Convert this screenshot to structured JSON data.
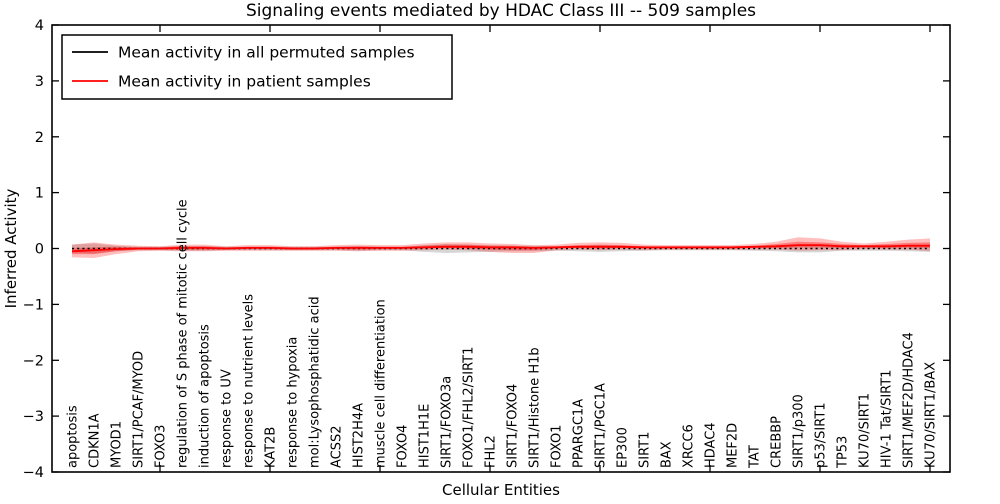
{
  "chart_data": {
    "type": "line",
    "title": "Signaling events mediated by HDAC Class III -- 509 samples",
    "xlabel": "Cellular Entities",
    "ylabel": "Inferred Activity",
    "ylim": [
      -4,
      4
    ],
    "yticks": [
      4,
      3,
      2,
      1,
      0,
      -1,
      -2,
      -3,
      -4
    ],
    "ytick_labels": [
      "4",
      "3",
      "2",
      "1",
      "0",
      "−1",
      "−2",
      "−3",
      "−4"
    ],
    "xtick_every": 5,
    "grid": false,
    "legend_position": "upper left",
    "categories": [
      "apoptosis",
      "CDKN1A",
      "MYOD1",
      "SIRT1/PCAF/MYOD",
      "FOXO3",
      "regulation of S phase of mitotic cell cycle",
      "induction of apoptosis",
      "response to UV",
      "response to nutrient levels",
      "KAT2B",
      "response to hypoxia",
      "mol:Lysophosphatidic acid",
      "ACSS2",
      "HIST2H4A",
      "muscle cell differentiation",
      "FOXO4",
      "HIST1H1E",
      "SIRT1/FOXO3a",
      "FOXO1/FHL2/SIRT1",
      "FHL2",
      "SIRT1/FOXO4",
      "SIRT1/Histone H1b",
      "FOXO1",
      "PPARGC1A",
      "SIRT1/PGC1A",
      "EP300",
      "SIRT1",
      "BAX",
      "XRCC6",
      "HDAC4",
      "MEF2D",
      "TAT",
      "CREBBP",
      "SIRT1/p300",
      "p53/SIRT1",
      "TP53",
      "KU70/SIRT1",
      "HIV-1 Tat/SIRT1",
      "SIRT1/MEF2D/HDAC4",
      "KU70/SIRT1/BAX"
    ],
    "series": [
      {
        "name": "Mean activity in all permuted samples",
        "color": "#000000",
        "line_style": "dotted",
        "values": [
          0,
          0,
          0,
          0,
          0,
          0,
          0,
          0,
          0,
          0,
          0,
          0,
          0,
          0,
          0,
          0,
          0,
          0,
          0,
          0,
          0,
          0,
          0,
          0,
          0,
          0,
          0,
          0,
          0,
          0,
          0,
          0,
          0,
          0,
          0,
          0,
          0,
          0,
          0,
          0
        ]
      },
      {
        "name": "Mean activity in patient samples",
        "color": "#ff0000",
        "line_style": "solid",
        "values": [
          -0.05,
          -0.03,
          -0.01,
          0,
          0,
          0.01,
          0.01,
          0,
          0.01,
          0.01,
          0,
          0,
          0.01,
          0.01,
          0.01,
          0.01,
          0.02,
          0.03,
          0.03,
          0.02,
          0.02,
          0.01,
          0.02,
          0.03,
          0.03,
          0.03,
          0.02,
          0.02,
          0.02,
          0.02,
          0.02,
          0.03,
          0.04,
          0.06,
          0.06,
          0.04,
          0.04,
          0.04,
          0.05,
          0.05
        ]
      }
    ],
    "bands": [
      {
        "name": "permuted-samples-band",
        "color": "#000000",
        "opacity": 0.16,
        "upper": [
          0.07,
          0.09,
          0.05,
          0.03,
          0.03,
          0.04,
          0.04,
          0.03,
          0.03,
          0.03,
          0.03,
          0.03,
          0.03,
          0.04,
          0.03,
          0.03,
          0.06,
          0.08,
          0.07,
          0.06,
          0.05,
          0.05,
          0.04,
          0.05,
          0.06,
          0.05,
          0.04,
          0.03,
          0.03,
          0.03,
          0.03,
          0.04,
          0.05,
          0.07,
          0.07,
          0.04,
          0.04,
          0.04,
          0.05,
          0.06
        ],
        "lower": [
          -0.07,
          -0.09,
          -0.05,
          -0.03,
          -0.03,
          -0.04,
          -0.04,
          -0.03,
          -0.03,
          -0.03,
          -0.03,
          -0.03,
          -0.03,
          -0.04,
          -0.03,
          -0.03,
          -0.06,
          -0.08,
          -0.07,
          -0.06,
          -0.05,
          -0.05,
          -0.04,
          -0.05,
          -0.06,
          -0.05,
          -0.04,
          -0.03,
          -0.03,
          -0.03,
          -0.03,
          -0.04,
          -0.05,
          -0.07,
          -0.07,
          -0.04,
          -0.04,
          -0.04,
          -0.05,
          -0.06
        ]
      },
      {
        "name": "patient-samples-outer-band",
        "color": "#ff0000",
        "opacity": 0.25,
        "upper": [
          0.07,
          0.11,
          0.07,
          0.05,
          0.04,
          0.07,
          0.07,
          0.04,
          0.06,
          0.06,
          0.04,
          0.04,
          0.06,
          0.07,
          0.06,
          0.06,
          0.09,
          0.11,
          0.11,
          0.09,
          0.08,
          0.06,
          0.07,
          0.1,
          0.11,
          0.1,
          0.07,
          0.06,
          0.06,
          0.06,
          0.06,
          0.08,
          0.12,
          0.2,
          0.18,
          0.12,
          0.09,
          0.12,
          0.16,
          0.18
        ],
        "lower": [
          -0.16,
          -0.17,
          -0.1,
          -0.05,
          -0.04,
          -0.05,
          -0.05,
          -0.04,
          -0.04,
          -0.04,
          -0.04,
          -0.04,
          -0.04,
          -0.05,
          -0.04,
          -0.04,
          -0.03,
          -0.02,
          -0.03,
          -0.06,
          -0.08,
          -0.08,
          -0.03,
          -0.02,
          -0.03,
          -0.02,
          -0.03,
          -0.02,
          -0.02,
          -0.02,
          -0.02,
          -0.02,
          -0.02,
          -0.04,
          -0.03,
          -0.03,
          -0.01,
          -0.02,
          -0.02,
          -0.05
        ]
      },
      {
        "name": "patient-samples-inner-band",
        "color": "#ff0000",
        "opacity": 0.35,
        "upper": [
          0.0,
          0.02,
          0.03,
          0.02,
          0.02,
          0.04,
          0.04,
          0.02,
          0.03,
          0.03,
          0.02,
          0.02,
          0.03,
          0.04,
          0.03,
          0.03,
          0.05,
          0.07,
          0.07,
          0.05,
          0.05,
          0.03,
          0.04,
          0.06,
          0.07,
          0.06,
          0.04,
          0.04,
          0.04,
          0.04,
          0.04,
          0.05,
          0.08,
          0.12,
          0.11,
          0.08,
          0.06,
          0.08,
          0.1,
          0.11
        ],
        "lower": [
          -0.1,
          -0.1,
          -0.05,
          -0.02,
          -0.02,
          -0.02,
          -0.02,
          -0.02,
          -0.01,
          -0.01,
          -0.02,
          -0.02,
          -0.01,
          -0.02,
          -0.01,
          -0.01,
          0.0,
          0.01,
          0.0,
          -0.02,
          -0.03,
          -0.03,
          0.0,
          0.01,
          0.0,
          0.01,
          0.0,
          0.0,
          0.0,
          0.0,
          0.0,
          0.01,
          0.01,
          0.02,
          0.02,
          0.01,
          0.02,
          0.01,
          0.02,
          0.01
        ]
      }
    ]
  },
  "legend": {
    "entries": [
      {
        "label": "Mean activity in all permuted samples",
        "color": "#000000"
      },
      {
        "label": "Mean activity in patient samples",
        "color": "#ff0000"
      }
    ]
  }
}
